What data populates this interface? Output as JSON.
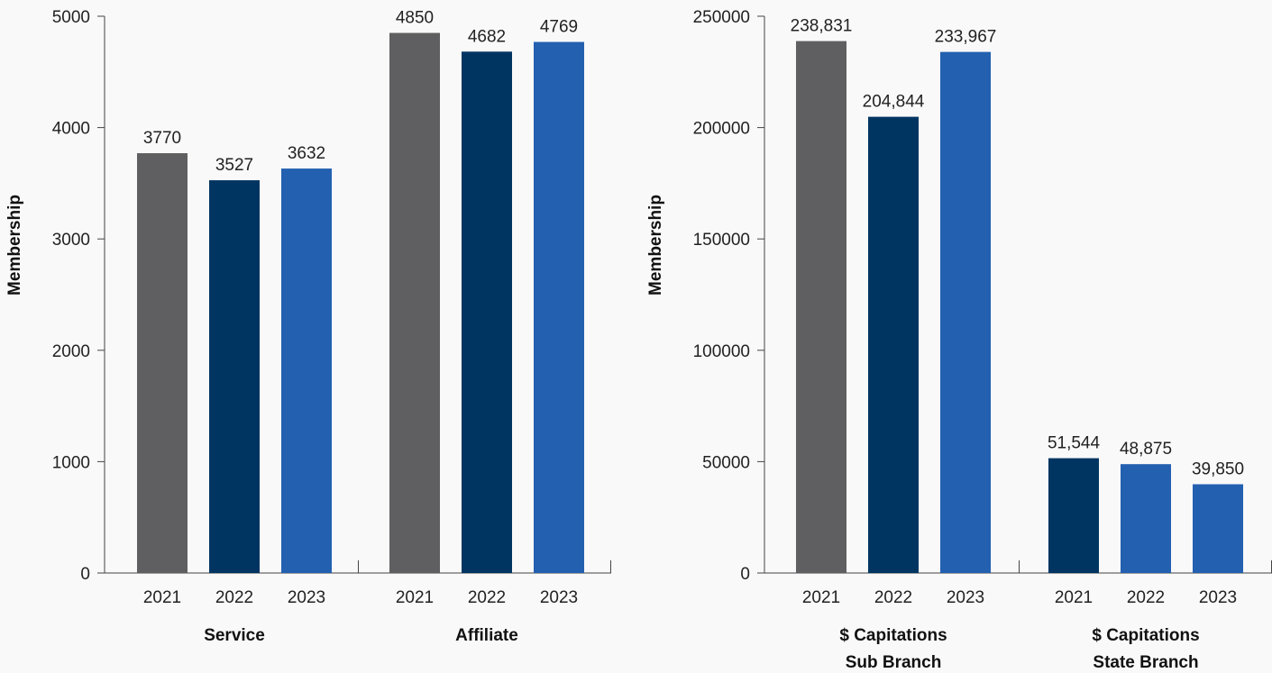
{
  "colors": {
    "gray": "#5f5f61",
    "navy": "#003562",
    "blue": "#2360b0"
  },
  "chart_data": [
    {
      "type": "bar",
      "ylabel": "Membership",
      "ylim": [
        0,
        5000
      ],
      "yticks": [
        0,
        1000,
        2000,
        3000,
        4000,
        5000
      ],
      "ytick_labels": [
        "0",
        "1000",
        "2000",
        "3000",
        "4000",
        "5000"
      ],
      "groups": [
        {
          "label_lines": [
            "Service"
          ],
          "bars": [
            {
              "category": "2021",
              "value": 3770,
              "label": "3770",
              "color": "#5f5f61"
            },
            {
              "category": "2022",
              "value": 3527,
              "label": "3527",
              "color": "#003562"
            },
            {
              "category": "2023",
              "value": 3632,
              "label": "3632",
              "color": "#2360b0"
            }
          ]
        },
        {
          "label_lines": [
            "Affiliate"
          ],
          "bars": [
            {
              "category": "2021",
              "value": 4850,
              "label": "4850",
              "color": "#5f5f61"
            },
            {
              "category": "2022",
              "value": 4682,
              "label": "4682",
              "color": "#003562"
            },
            {
              "category": "2023",
              "value": 4769,
              "label": "4769",
              "color": "#2360b0"
            }
          ]
        }
      ]
    },
    {
      "type": "bar",
      "ylabel": "Membership",
      "ylim": [
        0,
        250000
      ],
      "yticks": [
        0,
        50000,
        100000,
        150000,
        200000,
        250000
      ],
      "ytick_labels": [
        "0",
        "50000",
        "100000",
        "150000",
        "200000",
        "250000"
      ],
      "groups": [
        {
          "label_lines": [
            "$ Capitations",
            "Sub Branch"
          ],
          "bars": [
            {
              "category": "2021",
              "value": 238831,
              "label": "238,831",
              "color": "#5f5f61"
            },
            {
              "category": "2022",
              "value": 204844,
              "label": "204,844",
              "color": "#003562"
            },
            {
              "category": "2023",
              "value": 233967,
              "label": "233,967",
              "color": "#2360b0"
            }
          ]
        },
        {
          "label_lines": [
            "$ Capitations",
            "State Branch"
          ],
          "bars": [
            {
              "category": "2021",
              "value": 51544,
              "label": "51,544",
              "color": "#003562"
            },
            {
              "category": "2022",
              "value": 48875,
              "label": "48,875",
              "color": "#2360b0"
            },
            {
              "category": "2023",
              "value": 39850,
              "label": "39,850",
              "color": "#2360b0"
            }
          ]
        }
      ]
    }
  ]
}
